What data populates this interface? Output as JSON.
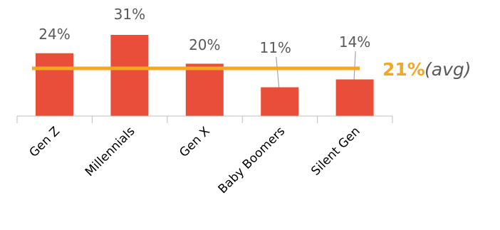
{
  "chart_data": {
    "type": "bar",
    "categories": [
      "Gen Z",
      "Millennials",
      "Gen X",
      "Baby Boomers",
      "Silent Gen"
    ],
    "values": [
      24,
      31,
      20,
      11,
      14
    ],
    "value_labels": [
      "24%",
      "31%",
      "20%",
      "11%",
      "14%"
    ],
    "ylim": [
      0,
      31
    ],
    "bar_color": "#E84E3A",
    "average": {
      "value": 21,
      "value_label": "21%",
      "suffix": "(avg)",
      "color": "#F5A623"
    },
    "grid": false,
    "axis_color": "#BFBFBF",
    "leader_line_color": "#A6A6A6",
    "text_color": "#595959"
  }
}
